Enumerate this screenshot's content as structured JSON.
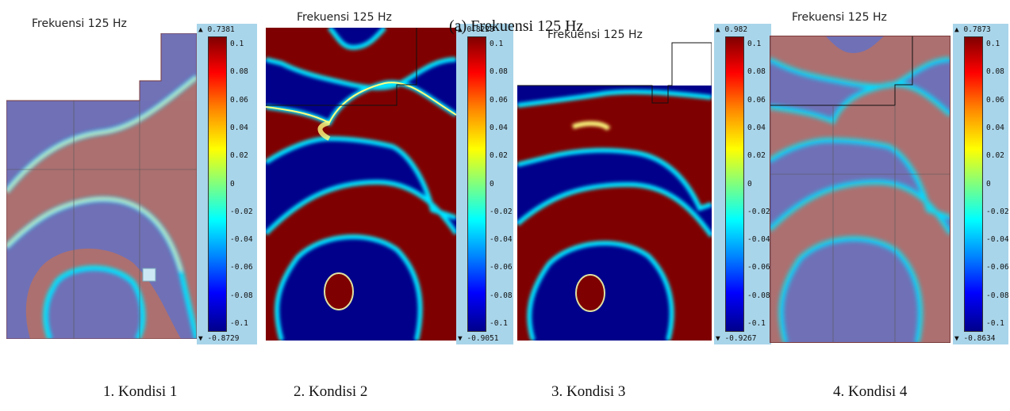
{
  "subfigure_caption": "(a) Frekuensi 125 Hz",
  "panels": [
    {
      "title": "Frekuensi 125 Hz",
      "colorbar": {
        "max": "▲ 0.7381",
        "min": "▼ -0.8729",
        "ticks": [
          "0.1",
          "0.08",
          "0.06",
          "0.04",
          "0.02",
          "0",
          "-0.02",
          "-0.04",
          "-0.06",
          "-0.08",
          "-0.1"
        ]
      },
      "caption": "1.  Kondisi 1"
    },
    {
      "title": "Frekuensi 125 Hz",
      "colorbar": {
        "max": "▲ 0.8228",
        "min": "▼ -0.9051",
        "ticks": [
          "0.1",
          "0.08",
          "0.06",
          "0.04",
          "0.02",
          "0",
          "-0.02",
          "-0.04",
          "-0.06",
          "-0.08",
          "-0.1"
        ]
      },
      "caption": "2. Kondisi 2"
    },
    {
      "title": "Frekuensi 125 Hz",
      "colorbar": {
        "max": "▲ 0.982",
        "min": "▼ -0.9267",
        "ticks": [
          "0.1",
          "0.08",
          "0.06",
          "0.04",
          "0.02",
          "0",
          "-0.02",
          "-0.04",
          "-0.06",
          "-0.08",
          "-0.1"
        ]
      },
      "caption": "3. Kondisi 3"
    },
    {
      "title": "Frekuensi 125 Hz",
      "colorbar": {
        "max": "▲ 0.7873",
        "min": "▼ -0.8634",
        "ticks": [
          "0.1",
          "0.08",
          "0.06",
          "0.04",
          "0.02",
          "0",
          "-0.02",
          "-0.04",
          "-0.06",
          "-0.08",
          "-0.1"
        ]
      },
      "caption": "4. Kondisi 4"
    }
  ],
  "colors": {
    "red": "#7f0000",
    "blue": "#00008b",
    "colorbar_bg": "#a9d5ea"
  }
}
